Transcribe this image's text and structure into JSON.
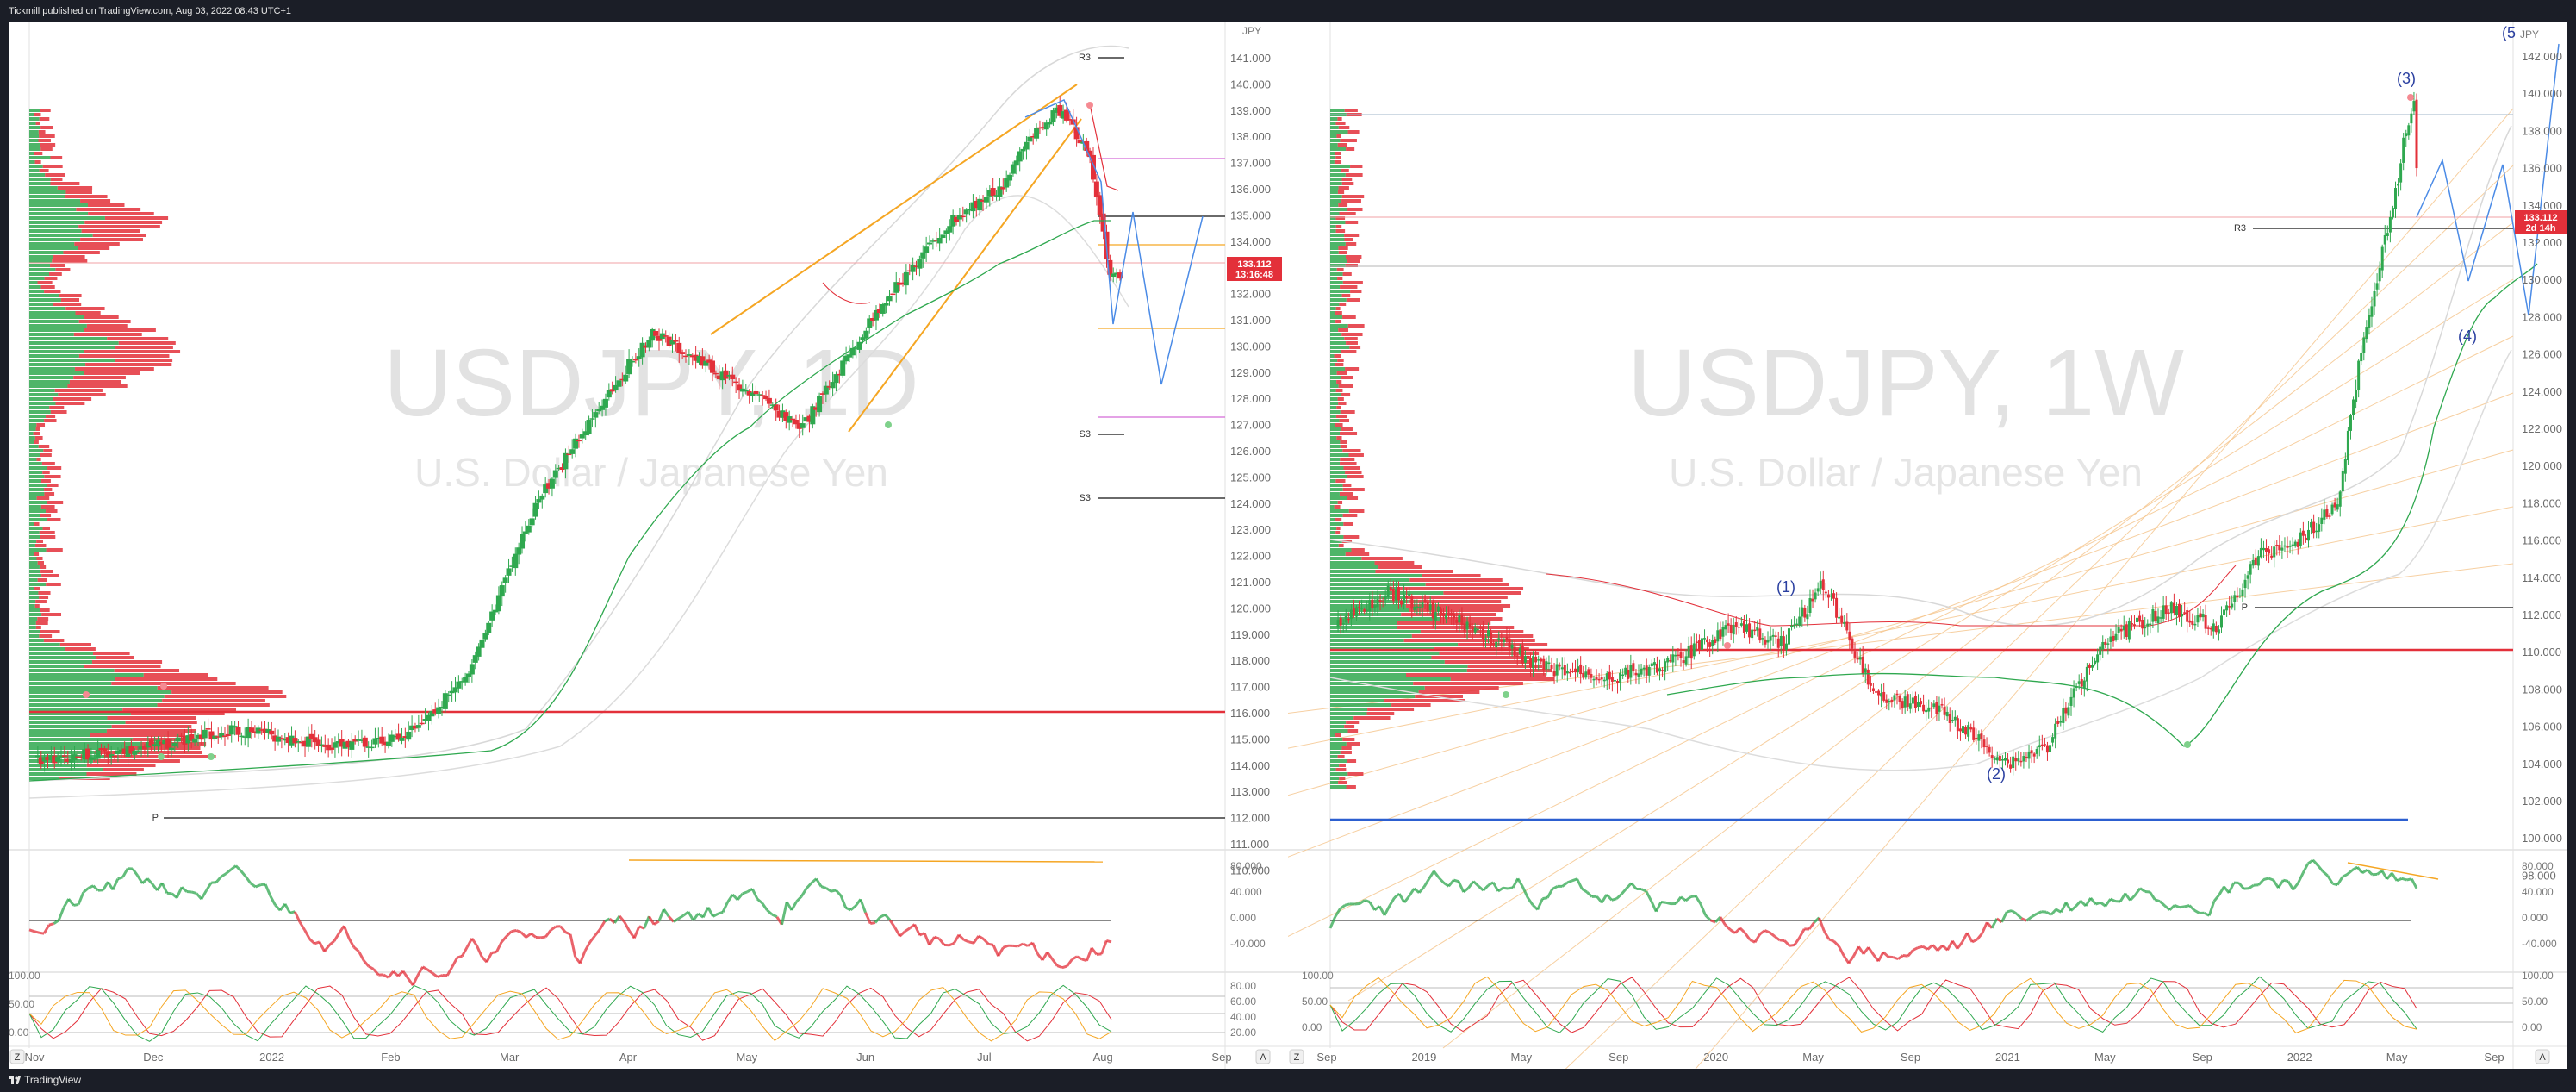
{
  "header": {
    "publish_note": "Tickmill published on TradingView.com, Aug 03, 2022 08:43 UTC+1"
  },
  "footer": {
    "brand": "TradingView"
  },
  "colors": {
    "up": "#2fa84f",
    "down": "#e3303a",
    "accent_orange": "#f5a623",
    "projection_blue": "#4b8be6",
    "pivot_line": "#111111",
    "support_red": "#e3303a",
    "support_blue": "#2c5fd0"
  },
  "left_chart": {
    "watermark_symbol": "USDJPY, 1D",
    "watermark_desc": "U.S. Dollar / Japanese Yen",
    "currency": "JPY",
    "price_ticks": [
      "141.000",
      "140.000",
      "139.000",
      "138.000",
      "137.000",
      "136.000",
      "135.000",
      "134.000",
      "133.000",
      "132.000",
      "131.000",
      "130.000",
      "129.000",
      "128.000",
      "127.000",
      "126.000",
      "125.000",
      "124.000",
      "123.000",
      "122.000",
      "121.000",
      "120.000",
      "119.000",
      "118.000",
      "117.000",
      "116.000",
      "115.000",
      "114.000",
      "113.000",
      "112.000",
      "111.000",
      "110.000"
    ],
    "price_tag": "133.112",
    "countdown": "13:16:48",
    "pivot_labels": {
      "r3": "R3",
      "s3a": "S3",
      "s3b": "S3",
      "p": "P"
    },
    "time_ticks": [
      "Nov",
      "Dec",
      "2022",
      "Feb",
      "Mar",
      "Apr",
      "May",
      "Jun",
      "Jul",
      "Aug",
      "Sep"
    ],
    "osc1_ticks": [
      "80.000",
      "40.000",
      "0.000",
      "-40.000"
    ],
    "osc2_ticks": [
      "100.00",
      "50.00",
      "0.00"
    ],
    "osc2_right_ticks": [
      "80.00",
      "60.00",
      "40.00",
      "20.00"
    ],
    "corner_left": "Z",
    "corner_right": "A"
  },
  "right_chart": {
    "watermark_symbol": "USDJPY, 1W",
    "watermark_desc": "U.S. Dollar / Japanese Yen",
    "currency": "JPY",
    "price_ticks": [
      "142.000",
      "140.000",
      "138.000",
      "136.000",
      "134.000",
      "132.000",
      "130.000",
      "128.000",
      "126.000",
      "124.000",
      "122.000",
      "120.000",
      "118.000",
      "116.000",
      "114.000",
      "112.000",
      "110.000",
      "108.000",
      "106.000",
      "104.000",
      "102.000",
      "100.000",
      "98.000"
    ],
    "price_tag": "133.112",
    "countdown": "2d 14h",
    "pivot_labels": {
      "r3": "R3",
      "p": "P"
    },
    "wave_labels": {
      "w1": "(1)",
      "w2": "(2)",
      "w3": "(3)",
      "w4": "(4)",
      "w5": "(5"
    },
    "time_ticks": [
      "Sep",
      "2019",
      "May",
      "Sep",
      "2020",
      "May",
      "Sep",
      "2021",
      "May",
      "Sep",
      "2022",
      "May",
      "Sep"
    ],
    "osc1_ticks": [
      "80.000",
      "40.000",
      "0.000",
      "-40.000"
    ],
    "osc2_ticks": [
      "100.00",
      "50.00",
      "0.00"
    ],
    "osc2_right_ticks": [
      "100.00",
      "50.00",
      "0.00"
    ],
    "corner_left": "Z",
    "corner_right": "A"
  }
}
